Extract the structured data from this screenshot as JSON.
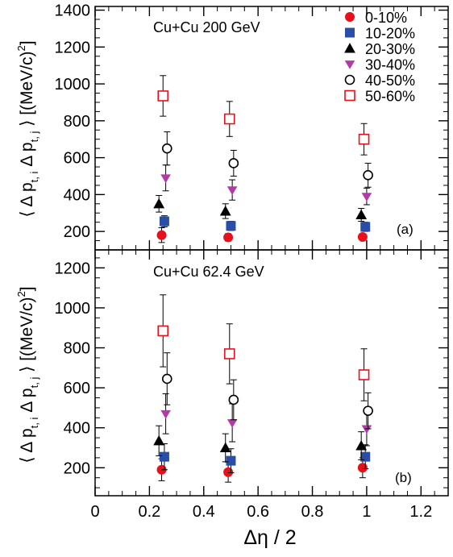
{
  "chart_data": [
    {
      "type": "scatter",
      "panel_title": "Cu+Cu 200 GeV",
      "panel_tag": "(a)",
      "ylabel": {
        "main": "⟨ Δ p",
        "sub_i": "t, i",
        "mid": " Δ p",
        "sub_j": "t, j",
        "tail": " ⟩ [(MeV/c)",
        "sup": "2",
        "end": "]"
      },
      "ylim": [
        100,
        1420
      ],
      "yticks": [
        200,
        400,
        600,
        800,
        1000,
        1200,
        1400
      ],
      "series": [
        {
          "name": "0-10%",
          "marker": "circle-filled",
          "color": "#e8111b",
          "points": [
            {
              "x": 0.245,
              "y": 180,
              "err": 40
            },
            {
              "x": 0.49,
              "y": 168,
              "err": 20
            },
            {
              "x": 0.985,
              "y": 170,
              "err": 15
            }
          ]
        },
        {
          "name": "10-20%",
          "marker": "square-filled",
          "color": "#2a4ea8",
          "points": [
            {
              "x": 0.255,
              "y": 255,
              "err": 30
            },
            {
              "x": 0.5,
              "y": 230,
              "err": 25
            },
            {
              "x": 0.995,
              "y": 225,
              "err": 25
            }
          ]
        },
        {
          "name": "20-30%",
          "marker": "triangle-up-filled",
          "color": "#000000",
          "points": [
            {
              "x": 0.235,
              "y": 350,
              "err": 45
            },
            {
              "x": 0.48,
              "y": 310,
              "err": 40
            },
            {
              "x": 0.98,
              "y": 290,
              "err": 35
            }
          ]
        },
        {
          "name": "30-40%",
          "marker": "triangle-down-filled",
          "color": "#b33aa8",
          "points": [
            {
              "x": 0.26,
              "y": 490,
              "err": 70
            },
            {
              "x": 0.505,
              "y": 425,
              "err": 55
            },
            {
              "x": 1.0,
              "y": 390,
              "err": 45
            }
          ]
        },
        {
          "name": "40-50%",
          "marker": "circle-open",
          "color": "#000000",
          "points": [
            {
              "x": 0.265,
              "y": 650,
              "err": 90
            },
            {
              "x": 0.51,
              "y": 570,
              "err": 70
            },
            {
              "x": 1.005,
              "y": 505,
              "err": 65
            }
          ]
        },
        {
          "name": "50-60%",
          "marker": "square-open",
          "color": "#e8111b",
          "points": [
            {
              "x": 0.25,
              "y": 935,
              "err": 110
            },
            {
              "x": 0.495,
              "y": 810,
              "err": 95
            },
            {
              "x": 0.99,
              "y": 700,
              "err": 85
            }
          ]
        }
      ]
    },
    {
      "type": "scatter",
      "panel_title": "Cu+Cu 62.4 GeV",
      "panel_tag": "(b)",
      "ylabel": {
        "main": "⟨ Δ p",
        "sub_i": "t, i",
        "mid": " Δ p",
        "sub_j": "t, j",
        "tail": " ⟩ [(MeV/c)",
        "sup": "2",
        "end": "]"
      },
      "ylim": [
        60,
        1290
      ],
      "yticks": [
        200,
        400,
        600,
        800,
        1000,
        1200
      ],
      "series": [
        {
          "name": "0-10%",
          "marker": "circle-filled",
          "color": "#e8111b",
          "points": [
            {
              "x": 0.245,
              "y": 190,
              "err": 55
            },
            {
              "x": 0.49,
              "y": 178,
              "err": 50
            },
            {
              "x": 0.985,
              "y": 200,
              "err": 50
            }
          ]
        },
        {
          "name": "10-20%",
          "marker": "square-filled",
          "color": "#2a4ea8",
          "points": [
            {
              "x": 0.255,
              "y": 255,
              "err": 65
            },
            {
              "x": 0.5,
              "y": 235,
              "err": 60
            },
            {
              "x": 0.995,
              "y": 255,
              "err": 60
            }
          ]
        },
        {
          "name": "20-30%",
          "marker": "triangle-up-filled",
          "color": "#000000",
          "points": [
            {
              "x": 0.235,
              "y": 335,
              "err": 75
            },
            {
              "x": 0.48,
              "y": 300,
              "err": 70
            },
            {
              "x": 0.98,
              "y": 310,
              "err": 70
            }
          ]
        },
        {
          "name": "30-40%",
          "marker": "triangle-down-filled",
          "color": "#b33aa8",
          "points": [
            {
              "x": 0.26,
              "y": 470,
              "err": 100
            },
            {
              "x": 0.505,
              "y": 425,
              "err": 95
            },
            {
              "x": 1.0,
              "y": 395,
              "err": 85
            }
          ]
        },
        {
          "name": "40-50%",
          "marker": "circle-open",
          "color": "#000000",
          "points": [
            {
              "x": 0.265,
              "y": 645,
              "err": 130
            },
            {
              "x": 0.51,
              "y": 540,
              "err": 100
            },
            {
              "x": 1.005,
              "y": 485,
              "err": 90
            }
          ]
        },
        {
          "name": "50-60%",
          "marker": "square-open",
          "color": "#e8111b",
          "points": [
            {
              "x": 0.25,
              "y": 885,
              "err": 180
            },
            {
              "x": 0.495,
              "y": 770,
              "err": 150
            },
            {
              "x": 0.99,
              "y": 665,
              "err": 130
            }
          ]
        }
      ]
    }
  ],
  "shared_x": {
    "xlabel": "Δη / 2",
    "xlim": [
      0,
      1.3
    ],
    "xticks": [
      "0",
      "0.2",
      "0.4",
      "0.6",
      "0.8",
      "1",
      "1.2"
    ],
    "xtick_values": [
      0,
      0.2,
      0.4,
      0.6,
      0.8,
      1.0,
      1.2
    ]
  },
  "legend": [
    "0-10%",
    "10-20%",
    "20-30%",
    "30-40%",
    "40-50%",
    "50-60%"
  ]
}
